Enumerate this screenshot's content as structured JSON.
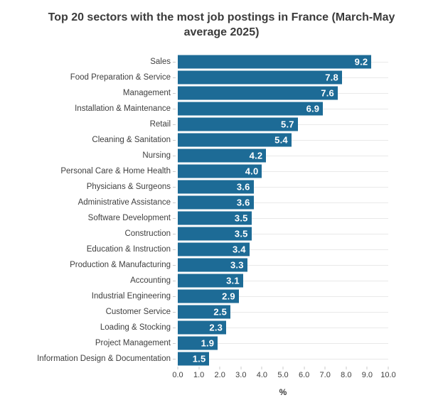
{
  "title": "Top 20 sectors with the most job postings in France (March-May average 2025)",
  "colors": {
    "bar": "#1d6b96",
    "value_label": "#ffffff",
    "title_text": "#3b3b3b",
    "axis_text": "#3f3f3f",
    "gridline": "#e9e9e9",
    "tick_mark": "#c9c9c9",
    "background": "#ffffff"
  },
  "chart_data": {
    "type": "bar",
    "orientation": "horizontal",
    "title": "Top 20 sectors with the most job postings in France (March-May average 2025)",
    "categories": [
      "Sales",
      "Food Preparation & Service",
      "Management",
      "Installation & Maintenance",
      "Retail",
      "Cleaning & Sanitation",
      "Nursing",
      "Personal Care & Home Health",
      "Physicians & Surgeons",
      "Administrative Assistance",
      "Software Development",
      "Construction",
      "Education & Instruction",
      "Production & Manufacturing",
      "Accounting",
      "Industrial Engineering",
      "Customer Service",
      "Loading & Stocking",
      "Project Management",
      "Information Design & Documentation"
    ],
    "values": [
      9.2,
      7.8,
      7.6,
      6.9,
      5.7,
      5.4,
      4.2,
      4.0,
      3.6,
      3.6,
      3.5,
      3.5,
      3.4,
      3.3,
      3.1,
      2.9,
      2.5,
      2.3,
      1.9,
      1.5
    ],
    "value_labels": [
      "9.2",
      "7.8",
      "7.6",
      "6.9",
      "5.7",
      "5.4",
      "4.2",
      "4.0",
      "3.6",
      "3.6",
      "3.5",
      "3.5",
      "3.4",
      "3.3",
      "3.1",
      "2.9",
      "2.5",
      "2.3",
      "1.9",
      "1.5"
    ],
    "xlabel": "%",
    "ylabel": "",
    "xlim": [
      0,
      10
    ],
    "x_ticks": [
      "0.0",
      "1.0",
      "2.0",
      "3.0",
      "4.0",
      "5.0",
      "6.0",
      "7.0",
      "8.0",
      "9.0",
      "10.0"
    ],
    "grid": "horizontal-category-gridlines",
    "legend": "none"
  }
}
